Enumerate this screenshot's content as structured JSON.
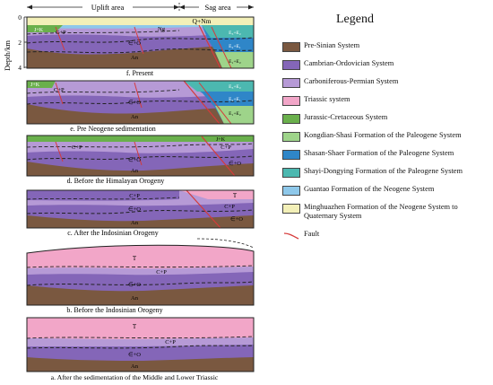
{
  "header": {
    "uplift_label": "Uplift area",
    "sag_label": "Sag area",
    "depth_label": "Depth/km",
    "depth_ticks": [
      "0",
      "2",
      "4"
    ]
  },
  "panels": [
    {
      "id": "f",
      "caption": "f. Present",
      "labels": [
        "Q+Nm",
        "Ng",
        "J+K",
        "C+P",
        "∈+O",
        "An",
        "E₃+E₂",
        "E₂+E₁",
        "E₁+E₂"
      ]
    },
    {
      "id": "e",
      "caption": "e. Pre Neogene sedimentation",
      "labels": [
        "J+K",
        "C+P",
        "∈+O",
        "An",
        "E₃+E₂",
        "E₂+E₁",
        "E₁+E₂"
      ]
    },
    {
      "id": "d",
      "caption": "d. Before the Himalayan Orogeny",
      "labels": [
        "J+K",
        "C+P",
        "∈+O",
        "An",
        "C+P",
        "∈+O"
      ]
    },
    {
      "id": "c",
      "caption": "c. After the Indosinian Orogeny",
      "labels": [
        "C+P",
        "∈+O",
        "An",
        "T",
        "C+P",
        "∈+O"
      ]
    },
    {
      "id": "b",
      "caption": "b. Before the Indosinian Orogeny",
      "labels": [
        "T",
        "C+P",
        "∈+O",
        "An"
      ]
    },
    {
      "id": "a",
      "caption": "a. After the sedimentation of the Middle and Lower Triassic",
      "labels": [
        "T",
        "C+P",
        "∈+O",
        "An"
      ]
    }
  ],
  "legend": {
    "title": "Legend",
    "items": [
      {
        "label": "Pre-Sinian System",
        "color": "#7a5840",
        "code": ""
      },
      {
        "label": "Cambrian-Ordovician System",
        "color": "#8466b8",
        "code": ""
      },
      {
        "label": "Carboniferous-Permian System",
        "color": "#b69ad6",
        "code": "C+P"
      },
      {
        "label": "Triassic system",
        "color": "#f2a6c8",
        "code": "T"
      },
      {
        "label": "Jurassic-Cretaceous System",
        "color": "#6ab04c",
        "code": "J+K"
      },
      {
        "label": "Kongdian-Shasi Formation of the Paleogene System",
        "color": "#9ed48a",
        "code": "E"
      },
      {
        "label": "Shasan-Shaer Formation of the Paleogene System",
        "color": "#2f86c8",
        "code": "E"
      },
      {
        "label": "Shayi-Dongying Formation of the Paleogene System",
        "color": "#4cb8b0",
        "code": "E"
      },
      {
        "label": "Guantao Formation of the Neogene System",
        "color": "#8ec8ea",
        "code": "Ng"
      },
      {
        "label": "Minghuazhen Formation of the Neogene System to Quaternary System",
        "color": "#f3f0b8",
        "code": "Q+Nm"
      },
      {
        "label": "Fault",
        "color": "#d63a3a",
        "code": ""
      }
    ]
  }
}
